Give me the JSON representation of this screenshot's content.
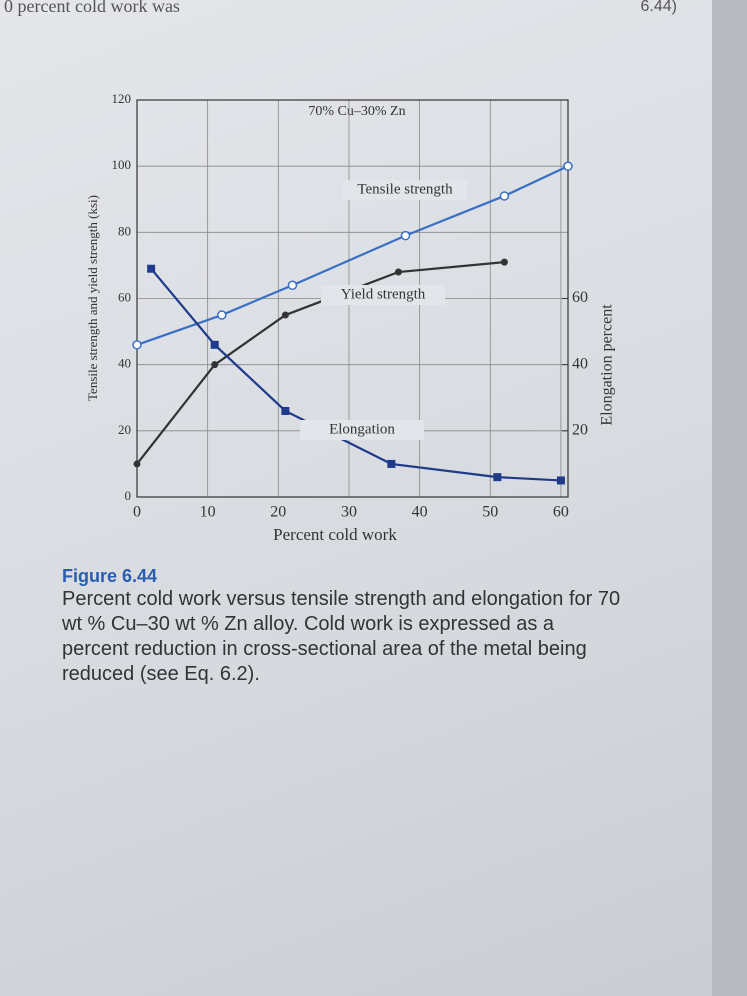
{
  "page": {
    "header": "0 percent cold work was",
    "corner": "6.44)"
  },
  "chart_data": {
    "type": "line",
    "annotation": "70% Cu–30% Zn",
    "x_label": "Percent cold work",
    "y_label": "Tensile strength and yield strength (ksi)",
    "y2_label": "Elongation percent",
    "xlim": [
      0,
      61
    ],
    "xticks": [
      0,
      10,
      20,
      30,
      40,
      50,
      60
    ],
    "ylim": [
      0,
      120
    ],
    "yticks": [
      0,
      20,
      40,
      60,
      80,
      100,
      120
    ],
    "y2lim": [
      0,
      120
    ],
    "y2ticks": [
      20,
      40,
      60
    ],
    "grid": true,
    "series": [
      {
        "name": "Tensile strength",
        "color": "#3a6fc4",
        "marker": "open-circle",
        "x": [
          0,
          12,
          22,
          38,
          52,
          61
        ],
        "values": [
          46,
          55,
          64,
          79,
          91,
          100
        ]
      },
      {
        "name": "Yield strength",
        "color": "#333333",
        "marker": "circle",
        "x": [
          0,
          11,
          21,
          37,
          52
        ],
        "values": [
          10,
          40,
          55,
          68,
          71
        ]
      },
      {
        "name": "Elongation",
        "color": "#1f3a8a",
        "marker": "square",
        "axis": "y2",
        "x": [
          2,
          11,
          21,
          36,
          51,
          60
        ],
        "values": [
          69,
          46,
          26,
          10,
          6,
          5
        ]
      }
    ]
  },
  "caption": {
    "label": "Figure 6.44",
    "text": "Percent cold work versus tensile strength and elongation for 70 wt % Cu–30 wt % Zn alloy. Cold work is expressed as a percent reduction in cross-sectional area of the metal being reduced (see Eq. 6.2)."
  }
}
